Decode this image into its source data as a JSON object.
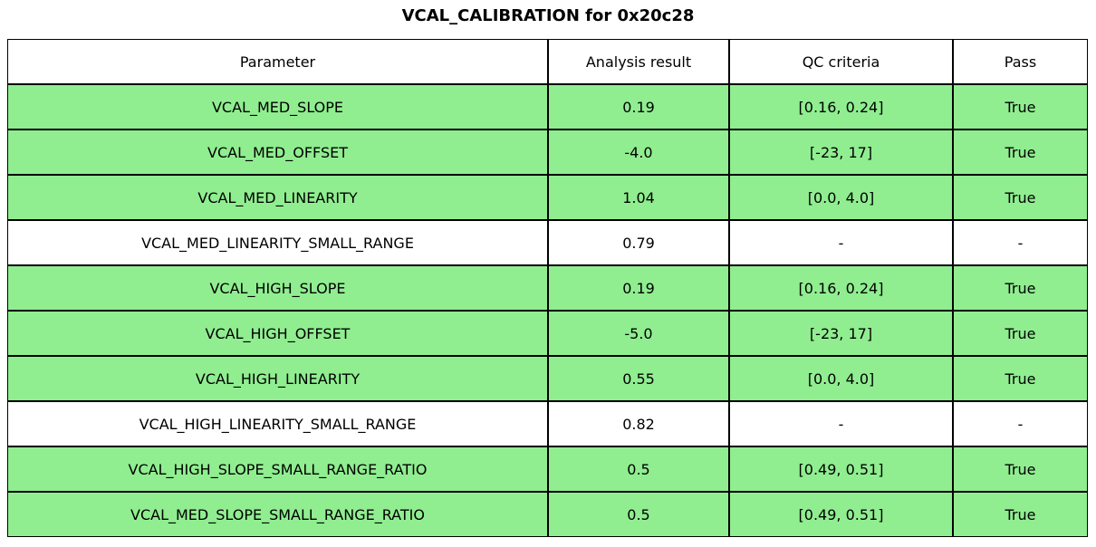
{
  "title": "VCAL_CALIBRATION for 0x20c28",
  "colors": {
    "row_pass_green": "#90EE90",
    "row_plain": "#FFFFFF",
    "border": "#000000",
    "background": "#FFFFFF"
  },
  "chart_data": {
    "type": "table",
    "title": "VCAL_CALIBRATION for 0x20c28",
    "columns": [
      "Parameter",
      "Analysis result",
      "QC criteria",
      "Pass"
    ],
    "rows": [
      {
        "parameter": "VCAL_MED_SLOPE",
        "result": "0.19",
        "qc": "[0.16, 0.24]",
        "pass": "True",
        "highlighted": true
      },
      {
        "parameter": "VCAL_MED_OFFSET",
        "result": "-4.0",
        "qc": "[-23, 17]",
        "pass": "True",
        "highlighted": true
      },
      {
        "parameter": "VCAL_MED_LINEARITY",
        "result": "1.04",
        "qc": "[0.0, 4.0]",
        "pass": "True",
        "highlighted": true
      },
      {
        "parameter": "VCAL_MED_LINEARITY_SMALL_RANGE",
        "result": "0.79",
        "qc": "-",
        "pass": "-",
        "highlighted": false
      },
      {
        "parameter": "VCAL_HIGH_SLOPE",
        "result": "0.19",
        "qc": "[0.16, 0.24]",
        "pass": "True",
        "highlighted": true
      },
      {
        "parameter": "VCAL_HIGH_OFFSET",
        "result": "-5.0",
        "qc": "[-23, 17]",
        "pass": "True",
        "highlighted": true
      },
      {
        "parameter": "VCAL_HIGH_LINEARITY",
        "result": "0.55",
        "qc": "[0.0, 4.0]",
        "pass": "True",
        "highlighted": true
      },
      {
        "parameter": "VCAL_HIGH_LINEARITY_SMALL_RANGE",
        "result": "0.82",
        "qc": "-",
        "pass": "-",
        "highlighted": false
      },
      {
        "parameter": "VCAL_HIGH_SLOPE_SMALL_RANGE_RATIO",
        "result": "0.5",
        "qc": "[0.49, 0.51]",
        "pass": "True",
        "highlighted": true
      },
      {
        "parameter": "VCAL_MED_SLOPE_SMALL_RANGE_RATIO",
        "result": "0.5",
        "qc": "[0.49, 0.51]",
        "pass": "True",
        "highlighted": true
      }
    ]
  }
}
